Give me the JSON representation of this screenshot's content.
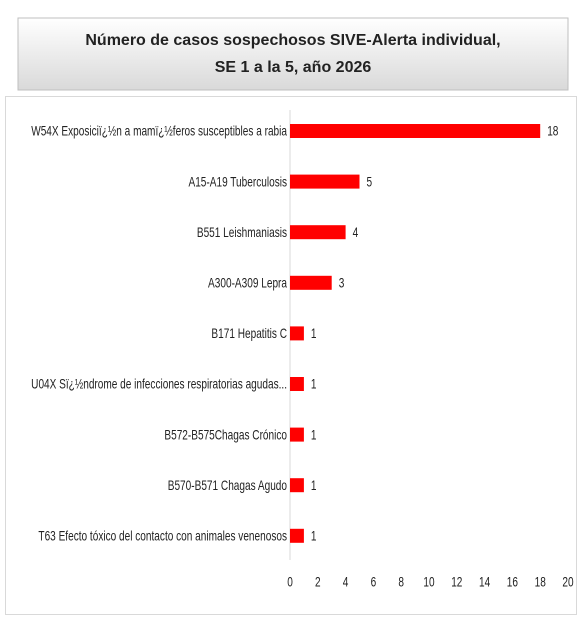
{
  "chart_data": {
    "type": "barh",
    "title": [
      "Número de casos sospechosos SIVE-Alerta individual,",
      "SE 1 a la 5, año 2026"
    ],
    "categories": [
      "W54X Exposiciï¿½n a mamï¿½feros susceptibles a rabia",
      "A15-A19 Tuberculosis",
      "B551 Leishmaniasis",
      "A300-A309 Lepra",
      "B171 Hepatitis C",
      "U04X Sï¿½ndrome de infecciones respiratorias agudas...",
      "B572-B575Chagas Crónico",
      "B570-B571 Chagas Agudo",
      "T63 Efecto tóxico del contacto con animales venenosos"
    ],
    "values": [
      18,
      5,
      4,
      3,
      1,
      1,
      1,
      1,
      1
    ],
    "color": "#ff0000",
    "xlim": [
      0,
      20
    ],
    "xticks": [
      0,
      2,
      4,
      6,
      8,
      10,
      12,
      14,
      16,
      18,
      20
    ],
    "grid": false
  }
}
